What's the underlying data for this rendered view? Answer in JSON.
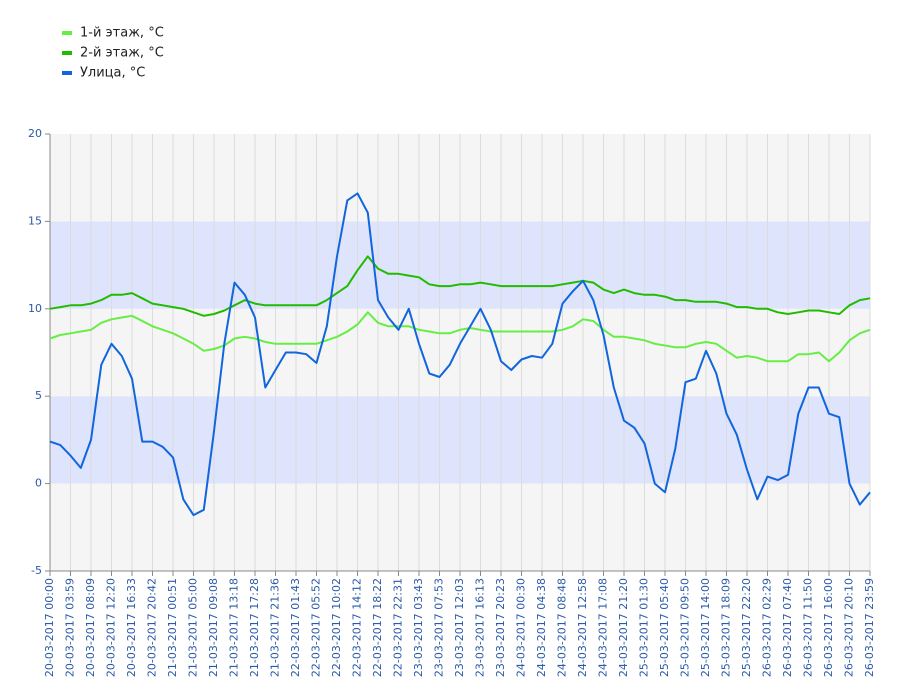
{
  "chart_data": {
    "type": "line",
    "categories": [
      "20-03-2017 00:00",
      null,
      "20-03-2017 03:59",
      null,
      "20-03-2017 08:09",
      null,
      "20-03-2017 12:20",
      null,
      "20-03-2017 16:33",
      null,
      "20-03-2017 20:42",
      null,
      "21-03-2017 00:51",
      null,
      "21-03-2017 05:00",
      null,
      "21-03-2017 09:08",
      null,
      "21-03-2017 13:18",
      null,
      "21-03-2017 17:28",
      null,
      "21-03-2017 21:36",
      null,
      "22-03-2017 01:43",
      null,
      "22-03-2017 05:52",
      null,
      "22-03-2017 10:02",
      null,
      "22-03-2017 14:12",
      null,
      "22-03-2017 18:22",
      null,
      "22-03-2017 22:31",
      null,
      "23-03-2017 03:43",
      null,
      "23-03-2017 07:53",
      null,
      "23-03-2017 12:03",
      null,
      "23-03-2017 16:13",
      null,
      "23-03-2017 20:23",
      null,
      "24-03-2017 00:30",
      null,
      "24-03-2017 04:38",
      null,
      "24-03-2017 08:48",
      null,
      "24-03-2017 12:58",
      null,
      "24-03-2017 17:08",
      null,
      "24-03-2017 21:20",
      null,
      "25-03-2017 01:30",
      null,
      "25-03-2017 05:40",
      null,
      "25-03-2017 09:50",
      null,
      "25-03-2017 14:00",
      null,
      "25-03-2017 18:09",
      null,
      "25-03-2017 22:20",
      null,
      "26-03-2017 02:29",
      null,
      "26-03-2017 07:40",
      null,
      "26-03-2017 11:50",
      null,
      "26-03-2017 16:00",
      null,
      "26-03-2017 20:10",
      null,
      "26-03-2017 23:59"
    ],
    "series": [
      {
        "name": "1-й этаж, °C",
        "color": "#66ee44",
        "values": [
          8.3,
          8.5,
          8.6,
          8.7,
          8.8,
          9.2,
          9.4,
          9.5,
          9.6,
          9.3,
          9.0,
          8.8,
          8.6,
          8.3,
          8.0,
          7.6,
          7.7,
          7.9,
          8.3,
          8.4,
          8.3,
          8.1,
          8.0,
          8.0,
          8.0,
          8.0,
          8.0,
          8.2,
          8.4,
          8.7,
          9.1,
          9.8,
          9.2,
          9.0,
          9.0,
          9.0,
          8.8,
          8.7,
          8.6,
          8.6,
          8.8,
          8.9,
          8.8,
          8.7,
          8.7,
          8.7,
          8.7,
          8.7,
          8.7,
          8.7,
          8.8,
          9.0,
          9.4,
          9.3,
          8.8,
          8.4,
          8.4,
          8.3,
          8.2,
          8.0,
          7.9,
          7.8,
          7.8,
          8.0,
          8.1,
          8.0,
          7.6,
          7.2,
          7.3,
          7.2,
          7.0,
          7.0,
          7.0,
          7.4,
          7.4,
          7.5,
          7.0,
          7.5,
          8.2,
          8.6,
          8.8
        ]
      },
      {
        "name": "2-й этаж, °C",
        "color": "#22bb00",
        "values": [
          10.0,
          10.1,
          10.2,
          10.2,
          10.3,
          10.5,
          10.8,
          10.8,
          10.9,
          10.6,
          10.3,
          10.2,
          10.1,
          10.0,
          9.8,
          9.6,
          9.7,
          9.9,
          10.2,
          10.5,
          10.3,
          10.2,
          10.2,
          10.2,
          10.2,
          10.2,
          10.2,
          10.5,
          10.9,
          11.3,
          12.2,
          13.0,
          12.3,
          12.0,
          12.0,
          11.9,
          11.8,
          11.4,
          11.3,
          11.3,
          11.4,
          11.4,
          11.5,
          11.4,
          11.3,
          11.3,
          11.3,
          11.3,
          11.3,
          11.3,
          11.4,
          11.5,
          11.6,
          11.5,
          11.1,
          10.9,
          11.1,
          10.9,
          10.8,
          10.8,
          10.7,
          10.5,
          10.5,
          10.4,
          10.4,
          10.4,
          10.3,
          10.1,
          10.1,
          10.0,
          10.0,
          9.8,
          9.7,
          9.8,
          9.9,
          9.9,
          9.8,
          9.7,
          10.2,
          10.5,
          10.6
        ]
      },
      {
        "name": "Улица, °C",
        "color": "#1166dd",
        "values": [
          2.4,
          2.2,
          1.6,
          0.9,
          2.5,
          6.8,
          8.0,
          7.3,
          6.0,
          2.4,
          2.4,
          2.1,
          1.5,
          -0.9,
          -1.8,
          -1.5,
          3.0,
          8.0,
          11.5,
          10.8,
          9.5,
          5.5,
          6.5,
          7.5,
          7.5,
          7.4,
          6.9,
          9.0,
          13.0,
          16.2,
          16.6,
          15.5,
          10.5,
          9.5,
          8.8,
          10.0,
          8.0,
          6.3,
          6.1,
          6.8,
          8.0,
          9.0,
          10.0,
          8.8,
          7.0,
          6.5,
          7.1,
          7.3,
          7.2,
          8.0,
          10.3,
          11.0,
          11.6,
          10.5,
          8.5,
          5.5,
          3.6,
          3.2,
          2.3,
          0.0,
          -0.5,
          2.0,
          5.8,
          6.0,
          7.6,
          6.3,
          4.0,
          2.8,
          0.8,
          -0.9,
          0.4,
          0.2,
          0.5,
          4.0,
          5.5,
          5.5,
          4.0,
          3.8,
          0.0,
          -1.2,
          -0.5
        ]
      }
    ],
    "ylim": [
      -5,
      20
    ],
    "yticks": [
      -5,
      0,
      5,
      10,
      15,
      20
    ],
    "band_colors": [
      "#f5f5f5",
      "#dde4fb"
    ],
    "grid": true,
    "legend": "top-left"
  }
}
